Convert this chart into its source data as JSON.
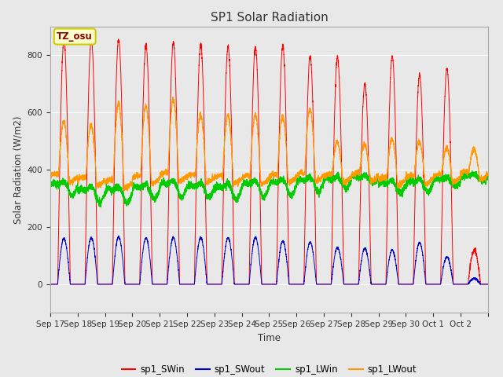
{
  "title": "SP1 Solar Radiation",
  "ylabel": "Solar Radiation (W/m2)",
  "xlabel": "Time",
  "ylim": [
    -100,
    900
  ],
  "bg_color": "#e8e8e8",
  "plot_bg": "#e8e8e8",
  "annotation_text": "TZ_osu",
  "annotation_color": "#8b0000",
  "annotation_bg": "#ffffcc",
  "annotation_border": "#cccc00",
  "series_colors": {
    "sp1_SWin": "#ff0000",
    "sp1_SWout": "#0000cc",
    "sp1_LWin": "#00cc00",
    "sp1_LWout": "#ff9900"
  },
  "n_days": 16,
  "points_per_day": 288,
  "sw_in_peaks": [
    850,
    855,
    855,
    835,
    845,
    838,
    830,
    828,
    833,
    797,
    793,
    700,
    795,
    730,
    753,
    120
  ],
  "sw_out_peaks": [
    160,
    163,
    165,
    162,
    163,
    163,
    162,
    163,
    151,
    147,
    128,
    125,
    119,
    145,
    95,
    20
  ],
  "lw_in_base": [
    340,
    320,
    320,
    330,
    340,
    335,
    330,
    340,
    345,
    355,
    360,
    370,
    345,
    350,
    360,
    375
  ],
  "lw_out_base": [
    370,
    360,
    350,
    365,
    375,
    370,
    365,
    365,
    370,
    375,
    370,
    375,
    360,
    365,
    370,
    380
  ],
  "lw_in_amplitude": [
    40,
    45,
    45,
    40,
    45,
    40,
    45,
    45,
    45,
    40,
    30,
    20,
    35,
    35,
    25,
    20
  ],
  "lw_out_peak": [
    570,
    560,
    635,
    625,
    650,
    595,
    595,
    595,
    590,
    615,
    500,
    490,
    510,
    500,
    480,
    475
  ],
  "grid_color": "#ffffff",
  "tick_label_dates": [
    "Sep 17",
    "Sep 18",
    "Sep 19",
    "Sep 20",
    "Sep 21",
    "Sep 22",
    "Sep 23",
    "Sep 24",
    "Sep 25",
    "Sep 26",
    "Sep 27",
    "Sep 28",
    "Sep 29",
    "Sep 30",
    "Oct 1",
    "Oct 2"
  ]
}
